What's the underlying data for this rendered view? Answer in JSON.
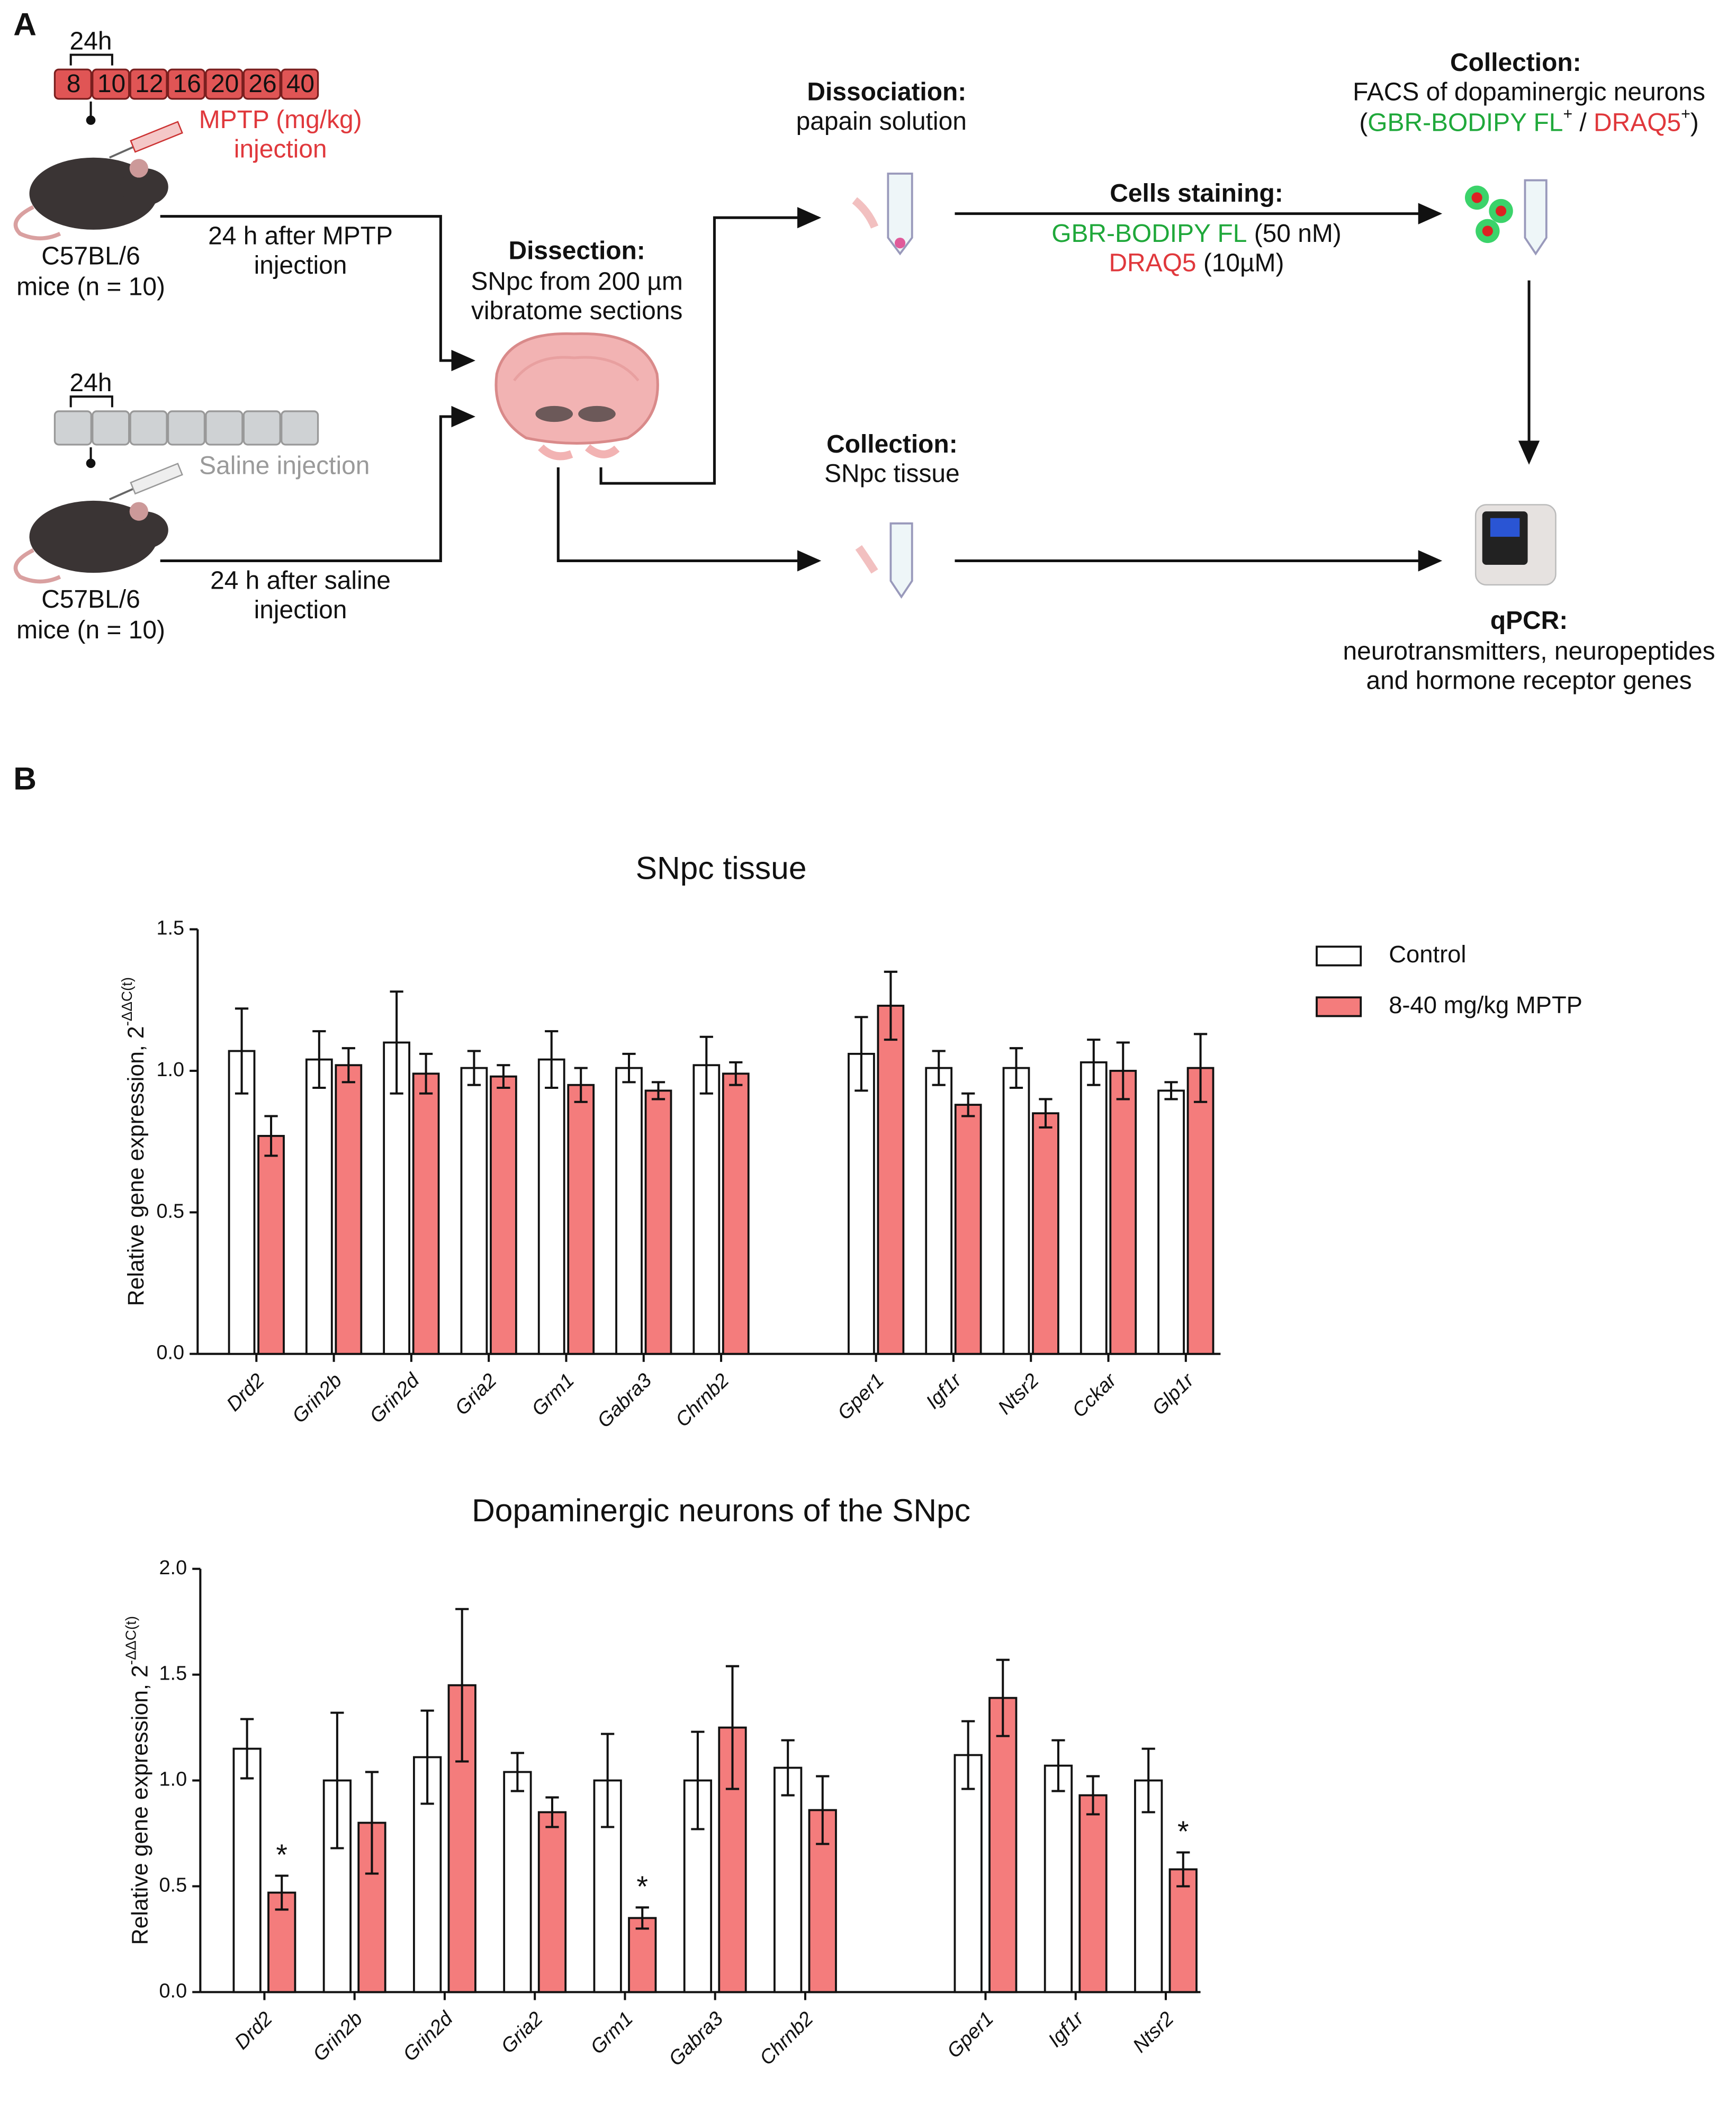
{
  "diagram": {
    "panel_a": "A",
    "panel_b": "B",
    "mptp": {
      "interval": "24h",
      "doses": [
        8,
        10,
        12,
        16,
        20,
        26,
        40
      ],
      "drug": "MPTP (mg/kg)",
      "injection": "injection"
    },
    "saline": {
      "interval": "24h",
      "injection": "Saline injection"
    },
    "mouse_mptp": {
      "strain": "C57BL/6",
      "count": "mice (n = 10)"
    },
    "mouse_saline": {
      "strain": "C57BL/6",
      "count": "mice (n = 10)"
    },
    "after_mptp": [
      "24 h after MPTP",
      "injection"
    ],
    "after_saline": [
      "24 h after saline",
      "injection"
    ],
    "dissection": {
      "title": "Dissection:",
      "lines": [
        "SNpc from 200 µm",
        "vibratome sections"
      ]
    },
    "dissociation": {
      "title": "Dissociation:",
      "lines": [
        "papain solution"
      ]
    },
    "staining": {
      "title": "Cells staining:",
      "dye1": "GBR-BODIPY FL",
      "dye1_conc": "(50 nM)",
      "dye2": "DRAQ5",
      "dye2_conc": "(10µM)"
    },
    "facs": {
      "title": "Collection:",
      "line": "FACS of dopaminergic neurons",
      "gate": [
        "(",
        "GBR-BODIPY FL",
        "+",
        "/",
        "DRAQ5",
        "+",
        ")"
      ]
    },
    "tissue": {
      "title": "Collection:",
      "lines": [
        "SNpc tissue"
      ]
    },
    "qpcr": {
      "title": "qPCR:",
      "lines": [
        "neurotransmitters, neuropeptides",
        "and hormone receptor genes"
      ]
    }
  },
  "chart_data": [
    {
      "type": "bar",
      "title": "SNpc tissue",
      "y_label": "Relative gene expression, 2",
      "y_label_sup": "-ΔΔC(t)",
      "categories": [
        "Drd2",
        "Grin2b",
        "Grin2d",
        "Gria2",
        "Grm1",
        "Gabra3",
        "Chrnb2",
        null,
        "Gper1",
        "Igf1r",
        "Ntsr2",
        "Cckar",
        "Glp1r"
      ],
      "series": [
        {
          "name": "Control",
          "color": "#ffffff",
          "values": [
            1.07,
            1.04,
            1.1,
            1.01,
            1.04,
            1.01,
            1.02,
            null,
            1.06,
            1.01,
            1.01,
            1.03,
            0.93
          ],
          "errors": [
            0.15,
            0.1,
            0.18,
            0.06,
            0.1,
            0.05,
            0.1,
            null,
            0.13,
            0.06,
            0.07,
            0.08,
            0.03
          ]
        },
        {
          "name": "8-40 mg/kg MPTP",
          "color": "#f47c7c",
          "values": [
            0.77,
            1.02,
            0.99,
            0.98,
            0.95,
            0.93,
            0.99,
            null,
            1.23,
            0.88,
            0.85,
            1.0,
            1.01
          ],
          "errors": [
            0.07,
            0.06,
            0.07,
            0.04,
            0.06,
            0.03,
            0.04,
            null,
            0.12,
            0.04,
            0.05,
            0.1,
            0.12
          ]
        }
      ],
      "ylim": [
        0,
        1.5
      ],
      "yticks": [
        {
          "value": 0,
          "label": "0.0"
        },
        {
          "value": 0.5,
          "label": "0.5"
        },
        {
          "value": 1,
          "label": "1.0"
        },
        {
          "value": 1.5,
          "label": "1.5"
        }
      ],
      "legend": "right"
    },
    {
      "type": "bar",
      "title": "Dopaminergic neurons of the SNpc",
      "y_label": "Relative gene expression, 2",
      "y_label_sup": "-ΔΔC(t)",
      "categories": [
        "Drd2",
        "Grin2b",
        "Grin2d",
        "Gria2",
        "Grm1",
        "Gabra3",
        "Chrnb2",
        null,
        "Gper1",
        "Igf1r",
        "Ntsr2"
      ],
      "series": [
        {
          "color": "#ffffff",
          "values": [
            1.15,
            1.0,
            1.11,
            1.04,
            1.0,
            1.0,
            1.06,
            null,
            1.12,
            1.07,
            1.0
          ],
          "errors": [
            0.14,
            0.32,
            0.22,
            0.09,
            0.22,
            0.23,
            0.13,
            null,
            0.16,
            0.12,
            0.15
          ]
        },
        {
          "color": "#f47c7c",
          "values": [
            0.47,
            0.8,
            1.45,
            0.85,
            0.35,
            1.25,
            0.86,
            null,
            1.39,
            0.93,
            0.58
          ],
          "errors": [
            0.08,
            0.24,
            0.36,
            0.07,
            0.05,
            0.29,
            0.16,
            null,
            0.18,
            0.09,
            0.08
          ],
          "significance": [
            "*",
            null,
            null,
            null,
            "*",
            null,
            null,
            null,
            null,
            null,
            "*"
          ]
        }
      ],
      "ylim": [
        0,
        2
      ],
      "yticks": [
        {
          "value": 0,
          "label": "0.0"
        },
        {
          "value": 0.5,
          "label": "0.5"
        },
        {
          "value": 1,
          "label": "1.0"
        },
        {
          "value": 1.5,
          "label": "1.5"
        },
        {
          "value": 2,
          "label": "2.0"
        }
      ]
    }
  ]
}
